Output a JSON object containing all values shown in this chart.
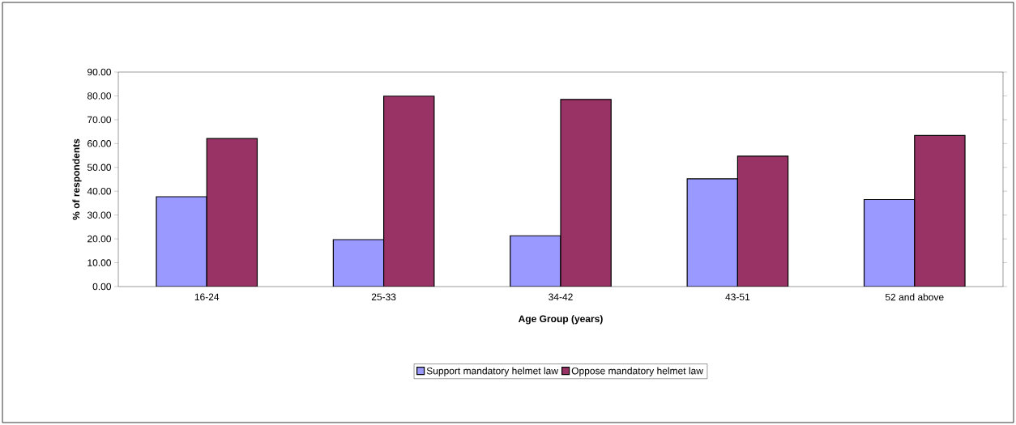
{
  "chart_data": {
    "type": "bar",
    "xlabel": "Age Group (years)",
    "ylabel": "% of respondents",
    "categories": [
      "16-24",
      "25-33",
      "34-42",
      "43-51",
      "52 and above"
    ],
    "series": [
      {
        "name": "Support  mandatory helmet law",
        "color": "#9999ff",
        "values": [
          37.7,
          19.7,
          21.3,
          45.2,
          36.5
        ]
      },
      {
        "name": "Oppose mandatory helmet law",
        "color": "#993366",
        "values": [
          62.1,
          79.9,
          78.5,
          54.7,
          63.4
        ]
      }
    ],
    "ylim": [
      0,
      90
    ],
    "yticks": [
      {
        "value": 0,
        "label": "0.00"
      },
      {
        "value": 10,
        "label": "10.00"
      },
      {
        "value": 20,
        "label": "20.00"
      },
      {
        "value": 30,
        "label": "30.00"
      },
      {
        "value": 40,
        "label": "40.00"
      },
      {
        "value": 50,
        "label": "50.00"
      },
      {
        "value": 60,
        "label": "60.00"
      },
      {
        "value": 70,
        "label": "70.00"
      },
      {
        "value": 80,
        "label": "80.00"
      },
      {
        "value": 90,
        "label": "90.00"
      }
    ],
    "grid": false,
    "legend": "bottom"
  }
}
